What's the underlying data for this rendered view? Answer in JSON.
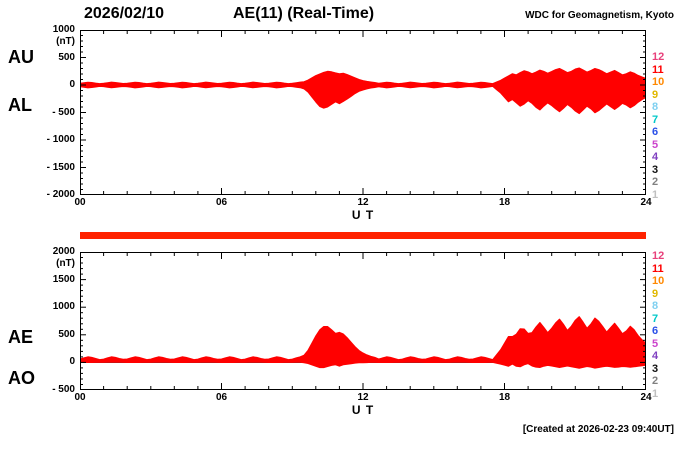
{
  "header": {
    "date": "2026/02/10",
    "title": "AE(11) (Real-Time)",
    "org": "WDC for Geomagnetism, Kyoto"
  },
  "footer": {
    "created": "[Created at 2026-02-23 09:40UT]"
  },
  "availability_bar_color": "#ff2200",
  "station_scale": {
    "numbers": [
      12,
      11,
      10,
      9,
      8,
      7,
      6,
      5,
      4,
      3,
      2,
      1
    ],
    "colors": [
      "#e8417b",
      "#ff0000",
      "#ff8800",
      "#e0b800",
      "#7fd0f0",
      "#00c8c8",
      "#2a50e8",
      "#cc44cc",
      "#8040c0",
      "#101010",
      "#808080",
      "#c0c0c0"
    ]
  },
  "panels": [
    {
      "left_labels": [
        "AU",
        "AL"
      ],
      "unit": "(nT)",
      "yticks": [
        1000,
        500,
        0,
        -500,
        -1000,
        -1500,
        -2000
      ],
      "ytick_labels": [
        "1000",
        "500",
        "0",
        "- 500",
        "- 1000",
        "- 1500",
        "- 2000"
      ],
      "xtick_hours": [
        0,
        6,
        12,
        18,
        24
      ],
      "xtick_labels": [
        "00",
        "06",
        "12",
        "18",
        "24"
      ],
      "xlabel": "U T"
    },
    {
      "left_labels": [
        "AE",
        "AO"
      ],
      "unit": "(nT)",
      "yticks": [
        2000,
        1500,
        1000,
        500,
        0,
        -500
      ],
      "ytick_labels": [
        "2000",
        "1500",
        "1000",
        "500",
        "0",
        "- 500"
      ],
      "xtick_hours": [
        0,
        6,
        12,
        18,
        24
      ],
      "xtick_labels": [
        "00",
        "06",
        "12",
        "18",
        "24"
      ],
      "xlabel": "U T"
    }
  ],
  "chart_data": [
    {
      "type": "area",
      "title": "AU and AL auroral electrojet indices, 2026/02/10",
      "x_unit": "hour UT",
      "xlim": [
        0,
        24
      ],
      "interval_minutes": 10,
      "ylim": [
        -2000,
        1000
      ],
      "fill_color": "#ff0000",
      "series": [
        {
          "name": "AU",
          "values": [
            30,
            40,
            50,
            45,
            35,
            25,
            30,
            42,
            52,
            46,
            36,
            28,
            30,
            40,
            50,
            45,
            35,
            25,
            30,
            42,
            52,
            46,
            36,
            28,
            30,
            40,
            50,
            45,
            35,
            25,
            30,
            42,
            52,
            46,
            36,
            28,
            30,
            40,
            50,
            45,
            35,
            25,
            30,
            42,
            52,
            46,
            36,
            28,
            30,
            40,
            50,
            45,
            35,
            25,
            30,
            42,
            52,
            60,
            90,
            130,
            170,
            200,
            230,
            250,
            240,
            220,
            205,
            215,
            190,
            160,
            130,
            100,
            80,
            65,
            55,
            45,
            30,
            40,
            50,
            45,
            35,
            25,
            30,
            42,
            52,
            46,
            36,
            28,
            30,
            40,
            50,
            45,
            35,
            25,
            30,
            42,
            52,
            46,
            36,
            28,
            30,
            40,
            50,
            45,
            35,
            25,
            55,
            85,
            125,
            165,
            205,
            185,
            225,
            260,
            240,
            205,
            235,
            270,
            250,
            215,
            245,
            280,
            300,
            265,
            225,
            250,
            290,
            310,
            275,
            235,
            265,
            300,
            280,
            245,
            205,
            235,
            265,
            225,
            185,
            205,
            240,
            215,
            175,
            145,
            120
          ]
        },
        {
          "name": "AL",
          "values": [
            -32,
            -42,
            -52,
            -46,
            -36,
            -26,
            -30,
            -40,
            -50,
            -44,
            -34,
            -28,
            -32,
            -42,
            -52,
            -46,
            -36,
            -26,
            -30,
            -40,
            -50,
            -44,
            -34,
            -28,
            -32,
            -42,
            -52,
            -46,
            -36,
            -26,
            -30,
            -40,
            -50,
            -44,
            -34,
            -28,
            -32,
            -42,
            -52,
            -46,
            -36,
            -26,
            -30,
            -40,
            -50,
            -44,
            -34,
            -28,
            -32,
            -42,
            -52,
            -46,
            -36,
            -26,
            -30,
            -40,
            -50,
            -70,
            -130,
            -220,
            -310,
            -390,
            -420,
            -400,
            -350,
            -305,
            -340,
            -300,
            -255,
            -205,
            -155,
            -115,
            -90,
            -70,
            -55,
            -45,
            -32,
            -42,
            -52,
            -46,
            -36,
            -26,
            -30,
            -40,
            -50,
            -44,
            -34,
            -28,
            -32,
            -42,
            -52,
            -46,
            -36,
            -26,
            -30,
            -40,
            -50,
            -44,
            -34,
            -28,
            -32,
            -42,
            -52,
            -46,
            -36,
            -26,
            -85,
            -145,
            -225,
            -305,
            -265,
            -325,
            -385,
            -345,
            -285,
            -335,
            -405,
            -455,
            -385,
            -325,
            -375,
            -435,
            -485,
            -425,
            -355,
            -405,
            -475,
            -520,
            -455,
            -385,
            -435,
            -505,
            -465,
            -405,
            -345,
            -395,
            -445,
            -395,
            -335,
            -365,
            -415,
            -375,
            -315,
            -265,
            -225
          ]
        }
      ]
    },
    {
      "type": "area",
      "title": "AE and AO auroral electrojet indices, 2026/02/10",
      "x_unit": "hour UT",
      "xlim": [
        0,
        24
      ],
      "interval_minutes": 10,
      "ylim": [
        -500,
        2000
      ],
      "fill_color": "#ff0000",
      "series": [
        {
          "name": "AE",
          "values": [
            62,
            82,
            102,
            91,
            71,
            51,
            60,
            82,
            102,
            90,
            70,
            56,
            62,
            82,
            102,
            91,
            71,
            51,
            60,
            82,
            102,
            90,
            70,
            56,
            62,
            82,
            102,
            91,
            71,
            51,
            60,
            82,
            102,
            90,
            70,
            56,
            62,
            82,
            102,
            91,
            71,
            51,
            60,
            82,
            102,
            90,
            70,
            56,
            62,
            82,
            102,
            91,
            71,
            51,
            60,
            82,
            102,
            130,
            220,
            350,
            480,
            590,
            650,
            650,
            590,
            525,
            545,
            515,
            445,
            365,
            285,
            215,
            170,
            135,
            110,
            90,
            62,
            82,
            102,
            91,
            71,
            51,
            60,
            82,
            102,
            90,
            70,
            56,
            62,
            82,
            102,
            91,
            71,
            51,
            60,
            82,
            102,
            90,
            70,
            56,
            62,
            82,
            102,
            91,
            71,
            51,
            140,
            230,
            350,
            470,
            470,
            510,
            610,
            605,
            525,
            540,
            640,
            725,
            635,
            540,
            620,
            715,
            785,
            690,
            580,
            655,
            765,
            830,
            730,
            620,
            700,
            805,
            745,
            650,
            550,
            630,
            710,
            620,
            520,
            570,
            655,
            590,
            490,
            410,
            345
          ]
        },
        {
          "name": "AO",
          "values": [
            -1,
            -1,
            -1,
            -1,
            0,
            0,
            0,
            1,
            1,
            1,
            1,
            0,
            -1,
            -1,
            -1,
            -1,
            0,
            0,
            0,
            1,
            1,
            1,
            1,
            0,
            -1,
            -1,
            -1,
            -1,
            0,
            0,
            0,
            1,
            1,
            1,
            1,
            0,
            -1,
            -1,
            -1,
            -1,
            0,
            0,
            0,
            1,
            1,
            1,
            1,
            0,
            -1,
            -1,
            -1,
            -1,
            0,
            0,
            0,
            1,
            1,
            -5,
            -20,
            -45,
            -70,
            -95,
            -95,
            -75,
            -55,
            -43,
            -68,
            -43,
            -33,
            -23,
            -13,
            -8,
            -5,
            -3,
            0,
            0,
            -1,
            -1,
            -1,
            -1,
            0,
            0,
            0,
            1,
            1,
            1,
            1,
            0,
            -1,
            -1,
            -1,
            -1,
            0,
            0,
            0,
            1,
            1,
            1,
            1,
            0,
            -1,
            -1,
            -1,
            -1,
            0,
            0,
            -15,
            -30,
            -50,
            -70,
            -30,
            -70,
            -80,
            -43,
            -23,
            -65,
            -85,
            -93,
            -68,
            -55,
            -65,
            -78,
            -93,
            -80,
            -65,
            -78,
            -93,
            -105,
            -90,
            -75,
            -85,
            -103,
            -93,
            -80,
            -70,
            -80,
            -90,
            -85,
            -75,
            -80,
            -88,
            -80,
            -70,
            -60,
            -53
          ]
        }
      ]
    }
  ]
}
